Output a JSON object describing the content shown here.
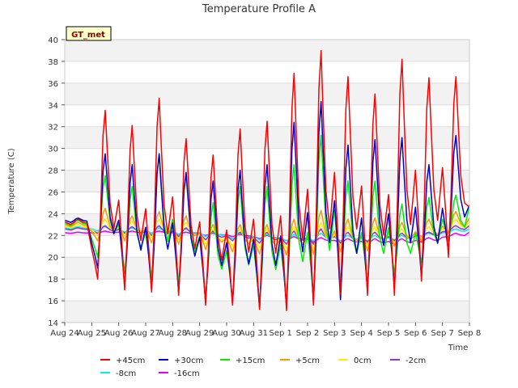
{
  "chart_data": {
    "type": "line",
    "title": "Temperature Profile A",
    "xlabel": "Time",
    "ylabel": "Temperature (C)",
    "badge": "GT_met",
    "ylim": [
      14,
      40
    ],
    "yticks": [
      14,
      16,
      18,
      20,
      22,
      24,
      26,
      28,
      30,
      32,
      34,
      36,
      38,
      40
    ],
    "xlim": [
      "2024-08-24",
      "2024-09-08"
    ],
    "xticks": [
      "Aug 24",
      "Aug 25",
      "Aug 26",
      "Aug 27",
      "Aug 28",
      "Aug 29",
      "Aug 30",
      "Aug 31",
      "Sep 1",
      "Sep 2",
      "Sep 3",
      "Sep 4",
      "Sep 5",
      "Sep 6",
      "Sep 7",
      "Sep 8"
    ],
    "grid": true,
    "legend_position": "bottom",
    "daily_peaks": {
      "days": [
        "Aug 24",
        "Aug 25",
        "Aug 26",
        "Aug 27",
        "Aug 28",
        "Aug 29",
        "Aug 30",
        "Aug 31",
        "Sep 1",
        "Sep 2",
        "Sep 3",
        "Sep 4",
        "Sep 5",
        "Sep 6",
        "Sep 7"
      ]
    },
    "series": [
      {
        "name": "+45cm",
        "color": "#ff0000",
        "max": [
          23.5,
          33.5,
          32.1,
          34.6,
          30.9,
          29.4,
          31.8,
          32.5,
          36.9,
          39.0,
          36.6,
          35.0,
          38.2,
          36.5,
          36.6
        ],
        "min": [
          23.0,
          18.0,
          17.0,
          16.8,
          16.5,
          15.6,
          15.6,
          15.2,
          15.1,
          15.6,
          16.6,
          16.5,
          16.5,
          17.8,
          20.0
        ],
        "end": 24.6
      },
      {
        "name": "+30cm",
        "color": "#0000cc",
        "max": [
          23.6,
          29.5,
          28.5,
          29.5,
          27.8,
          27.0,
          28.0,
          28.5,
          32.4,
          34.3,
          30.3,
          30.8,
          31.0,
          28.5,
          31.2
        ],
        "min": [
          23.2,
          19.0,
          17.3,
          17.0,
          16.8,
          15.9,
          15.7,
          15.3,
          15.4,
          15.8,
          16.1,
          16.9,
          17.2,
          18.2,
          20.5
        ],
        "end": 24.8
      },
      {
        "name": "+15cm",
        "color": "#00ee00",
        "max": [
          23.4,
          27.5,
          26.5,
          29.5,
          27.6,
          25.0,
          26.5,
          26.5,
          28.5,
          31.2,
          27.0,
          27.0,
          24.9,
          25.5,
          25.7
        ],
        "min": [
          22.9,
          20.0,
          18.5,
          18.0,
          17.5,
          16.3,
          16.2,
          15.6,
          15.8,
          16.1,
          17.5,
          17.5,
          18.4,
          19.5,
          21.5
        ],
        "end": 24.7
      },
      {
        "name": "+5cm",
        "color": "#ff9900",
        "max": [
          23.2,
          24.5,
          23.8,
          24.2,
          23.8,
          23.0,
          23.0,
          23.0,
          23.5,
          24.3,
          23.5,
          23.6,
          23.2,
          23.5,
          24.2
        ],
        "min": [
          22.8,
          21.5,
          21.5,
          21.3,
          21.2,
          20.7,
          20.5,
          20.3,
          20.2,
          20.3,
          20.5,
          20.6,
          21.0,
          21.5,
          22.2
        ],
        "end": 23.6
      },
      {
        "name": "0cm",
        "color": "#ffee00",
        "max": [
          23.0,
          23.5,
          23.3,
          23.5,
          23.2,
          22.6,
          22.6,
          22.6,
          22.8,
          23.2,
          22.8,
          22.8,
          22.6,
          22.8,
          23.5
        ],
        "min": [
          22.7,
          22.0,
          22.0,
          21.8,
          21.6,
          21.2,
          21.0,
          20.9,
          20.8,
          20.8,
          21.0,
          21.1,
          21.3,
          21.8,
          22.4
        ],
        "end": 23.3
      },
      {
        "name": "-2cm",
        "color": "#9933cc",
        "max": [
          22.7,
          22.9,
          22.8,
          22.9,
          22.7,
          22.4,
          22.3,
          22.3,
          22.4,
          22.6,
          22.3,
          22.3,
          22.2,
          22.3,
          22.9
        ],
        "min": [
          22.5,
          22.2,
          22.2,
          22.0,
          21.9,
          21.6,
          21.5,
          21.3,
          21.2,
          21.2,
          21.3,
          21.4,
          21.5,
          21.9,
          22.4
        ],
        "end": 22.9
      },
      {
        "name": "-8cm",
        "color": "#00eeee",
        "max": [
          22.8,
          22.8,
          22.7,
          22.7,
          22.6,
          22.3,
          22.2,
          22.1,
          22.1,
          22.2,
          22.0,
          22.0,
          22.0,
          22.2,
          22.6
        ],
        "min": [
          22.6,
          22.4,
          22.3,
          22.2,
          22.1,
          21.9,
          21.7,
          21.6,
          21.5,
          21.5,
          21.5,
          21.5,
          21.6,
          21.9,
          22.3
        ],
        "end": 22.6
      },
      {
        "name": "-16cm",
        "color": "#ee00ee",
        "max": [
          22.3,
          22.4,
          22.4,
          22.4,
          22.3,
          22.2,
          22.1,
          22.0,
          21.9,
          21.8,
          21.7,
          21.7,
          21.7,
          21.8,
          22.2
        ],
        "min": [
          22.2,
          22.2,
          22.2,
          22.2,
          22.1,
          22.0,
          21.9,
          21.7,
          21.5,
          21.4,
          21.3,
          21.2,
          21.2,
          21.4,
          21.9
        ],
        "end": 22.3
      }
    ]
  }
}
